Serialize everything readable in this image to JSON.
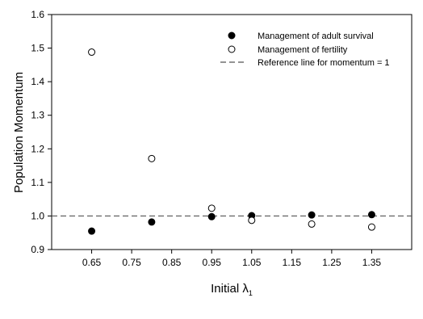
{
  "chart_data": {
    "type": "scatter",
    "title": "",
    "xlabel": "Initial λ",
    "xlabel_subscript": "1",
    "ylabel": "Population Momentum",
    "xlim": [
      0.55,
      1.45
    ],
    "ylim": [
      0.9,
      1.6
    ],
    "x_ticks": [
      "0.65",
      "0.75",
      "0.85",
      "0.95",
      "1.05",
      "1.15",
      "1.25",
      "1.35"
    ],
    "y_ticks": [
      "0.9",
      "1.0",
      "1.1",
      "1.2",
      "1.3",
      "1.4",
      "1.5",
      "1.6"
    ],
    "grid": false,
    "legend_position": "top-right",
    "series": [
      {
        "name": "Management of adult survival",
        "marker": "filled-circle",
        "color": "#000000",
        "x": [
          0.65,
          0.8,
          0.95,
          1.05,
          1.2,
          1.35
        ],
        "y": [
          0.955,
          0.982,
          0.998,
          1.001,
          1.003,
          1.004
        ]
      },
      {
        "name": "Management of fertility",
        "marker": "open-circle",
        "color": "#000000",
        "x": [
          0.65,
          0.8,
          0.95,
          1.05,
          1.2,
          1.35
        ],
        "y": [
          1.488,
          1.171,
          1.023,
          0.987,
          0.976,
          0.967
        ]
      }
    ],
    "reference_line": {
      "name": "Reference line for momentum = 1",
      "y": 1.0,
      "style": "dashed",
      "color": "#555555"
    }
  }
}
